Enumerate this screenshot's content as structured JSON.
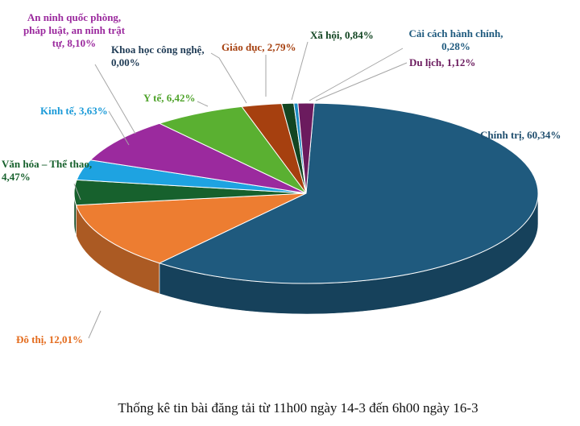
{
  "chart_data": {
    "type": "pie",
    "style": "3d",
    "caption": "Thống kê tin bài đăng tải từ 11h00 ngày 14-3 đến 6h00 ngày 16-3",
    "slices": [
      {
        "lines": [
          "Chính trị, 60,34%"
        ],
        "value": 60.34,
        "color": "#1f5a7e",
        "label_color": "#1f4e6e"
      },
      {
        "lines": [
          "Đô thị, 12,01%"
        ],
        "value": 12.01,
        "color": "#ed7d31",
        "label_color": "#e46c1e"
      },
      {
        "lines": [
          "Văn hóa – Thể thao,",
          "4,47%"
        ],
        "value": 4.47,
        "color": "#17612d",
        "label_color": "#17612d"
      },
      {
        "lines": [
          "Kinh tế, 3,63%"
        ],
        "value": 3.63,
        "color": "#1ea3e1",
        "label_color": "#1a9ad8"
      },
      {
        "lines": [
          "An ninh quốc phòng,",
          "pháp luật, an ninh trật",
          "tự, 8,10%"
        ],
        "value": 8.1,
        "color": "#9b2a9e",
        "label_color": "#9b2a9e"
      },
      {
        "lines": [
          "Khoa học công nghệ,",
          "0,00%"
        ],
        "value": 0.0,
        "color": "#2f5d82",
        "label_color": "#1f3b55"
      },
      {
        "lines": [
          "Y tế, 6,42%"
        ],
        "value": 6.42,
        "color": "#5ab031",
        "label_color": "#4fa32b"
      },
      {
        "lines": [
          "Giáo dục, 2,79%"
        ],
        "value": 2.79,
        "color": "#a6400f",
        "label_color": "#a6400f"
      },
      {
        "lines": [
          "Xã hội, 0,84%"
        ],
        "value": 0.84,
        "color": "#124522",
        "label_color": "#124522"
      },
      {
        "lines": [
          "Cải cách hành chính,",
          "0,28%"
        ],
        "value": 0.28,
        "color": "#1c8bc2",
        "label_color": "#1f5a7e"
      },
      {
        "lines": [
          "Du lịch, 1,12%"
        ],
        "value": 1.12,
        "color": "#6b1b5e",
        "label_color": "#6b1b5e"
      }
    ]
  }
}
